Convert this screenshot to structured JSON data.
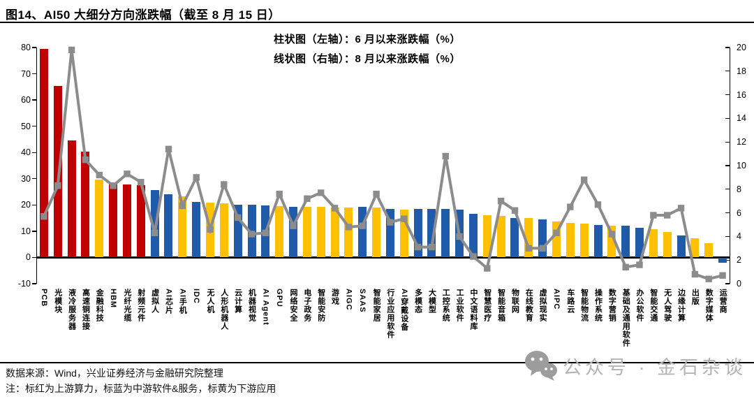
{
  "page": {
    "title": "图14、AI50 大细分方向涨跌幅（截至 8 月 15 日）"
  },
  "legend": {
    "bar_label": "柱状图（左轴）：6 月以来涨跌幅（%）",
    "line_label": "线状图（右轴）：8 月以来涨跌幅（%）"
  },
  "footer": {
    "source": "数据来源：Wind，兴业证券经济与金融研究院整理",
    "note": "注：标红为上游算力，标蓝为中游软件&服务，标黄为下游应用"
  },
  "watermark": {
    "icon": "wechat-icon",
    "text": "公众号 · 金石杂谈"
  },
  "colors": {
    "upstream_red": "#C00000",
    "midstream_blue": "#1F5BA8",
    "downstream_yellow": "#FFC000",
    "line_gray": "#8C8C8C",
    "watermark_gray": "#B4B4B4"
  },
  "chart_data": {
    "type": "bar",
    "title": "AI50 大细分方向涨跌幅（截至 8 月 15 日）",
    "grid": false,
    "left_axis": {
      "min": -10,
      "max": 80,
      "step": 10,
      "label": "6 月以来涨跌幅（%）"
    },
    "right_axis": {
      "min": 0,
      "max": 20,
      "step": 2,
      "label": "8 月以来涨跌幅（%）"
    },
    "color_note": {
      "red": "上游算力",
      "blue": "中游软件&服务",
      "yellow": "下游应用"
    },
    "categories": [
      "PCB",
      "光模块",
      "液冷服务器",
      "高速铜连接",
      "金融科技",
      "HBM",
      "光纤光缆",
      "射频元件",
      "虚拟人",
      "AI芯片",
      "AI手机",
      "IDC",
      "无人机",
      "人形机器人",
      "云计算",
      "机器视觉",
      "AI Agent",
      "GPU",
      "网络安全",
      "电子政务",
      "智能安防",
      "游戏",
      "AIGC",
      "SAAS",
      "智能家居",
      "行业应用软件",
      "AI穿戴设备",
      "多模态",
      "大模型",
      "工控系统",
      "工业软件",
      "中文语料库",
      "智慧医疗",
      "智能音箱",
      "物联网",
      "在线教育",
      "虚拟现实",
      "AIPC",
      "车路云",
      "智能物流",
      "操作系统",
      "数字营销",
      "基础及通用软件",
      "办公软件",
      "智能交通",
      "无人驾驶",
      "边缘计算",
      "出版",
      "数字媒体",
      "运营商"
    ],
    "series": [
      {
        "name": "6 月以来涨跌幅（%）",
        "type": "bar",
        "axis": "left",
        "values": [
          79.5,
          65.3,
          44.6,
          40.2,
          29.8,
          28.2,
          27.8,
          27.5,
          25.8,
          24.2,
          23.3,
          21.2,
          20.8,
          20.5,
          20.2,
          20.0,
          19.8,
          19.6,
          19.4,
          19.3,
          19.2,
          19.0,
          19.0,
          19.2,
          19.0,
          18.6,
          18.3,
          18.5,
          18.5,
          18.5,
          18.1,
          16.6,
          16.2,
          15.7,
          15.0,
          15.0,
          14.5,
          13.6,
          13.2,
          13.0,
          12.3,
          12.1,
          12.1,
          11.2,
          10.8,
          9.7,
          8.3,
          7.4,
          5.4,
          -1.8
        ],
        "bar_colors": [
          "red",
          "red",
          "red",
          "red",
          "yellow",
          "red",
          "red",
          "red",
          "blue",
          "blue",
          "yellow",
          "blue",
          "yellow",
          "yellow",
          "blue",
          "blue",
          "blue",
          "yellow",
          "blue",
          "yellow",
          "yellow",
          "yellow",
          "yellow",
          "blue",
          "yellow",
          "blue",
          "yellow",
          "blue",
          "blue",
          "blue",
          "blue",
          "blue",
          "yellow",
          "yellow",
          "blue",
          "yellow",
          "blue",
          "yellow",
          "yellow",
          "yellow",
          "blue",
          "yellow",
          "blue",
          "blue",
          "yellow",
          "yellow",
          "blue",
          "yellow",
          "yellow",
          "blue"
        ]
      },
      {
        "name": "8 月以来涨跌幅（%）",
        "type": "line",
        "axis": "right",
        "color": "#8C8C8C",
        "values": [
          5.7,
          8.3,
          19.8,
          10.5,
          9.2,
          8.3,
          9.3,
          8.6,
          4.3,
          11.4,
          6.6,
          9.0,
          4.6,
          8.4,
          5.6,
          4.2,
          4.3,
          7.6,
          4.9,
          7.2,
          7.7,
          6.4,
          4.8,
          4.9,
          7.6,
          5.2,
          5.5,
          3.1,
          3.1,
          10.8,
          4.0,
          2.3,
          1.3,
          7.0,
          6.2,
          3.0,
          3.0,
          4.3,
          6.5,
          8.8,
          6.7,
          4.2,
          1.4,
          1.6,
          5.8,
          5.8,
          6.4,
          0.8,
          0.4,
          0.7
        ]
      }
    ]
  }
}
